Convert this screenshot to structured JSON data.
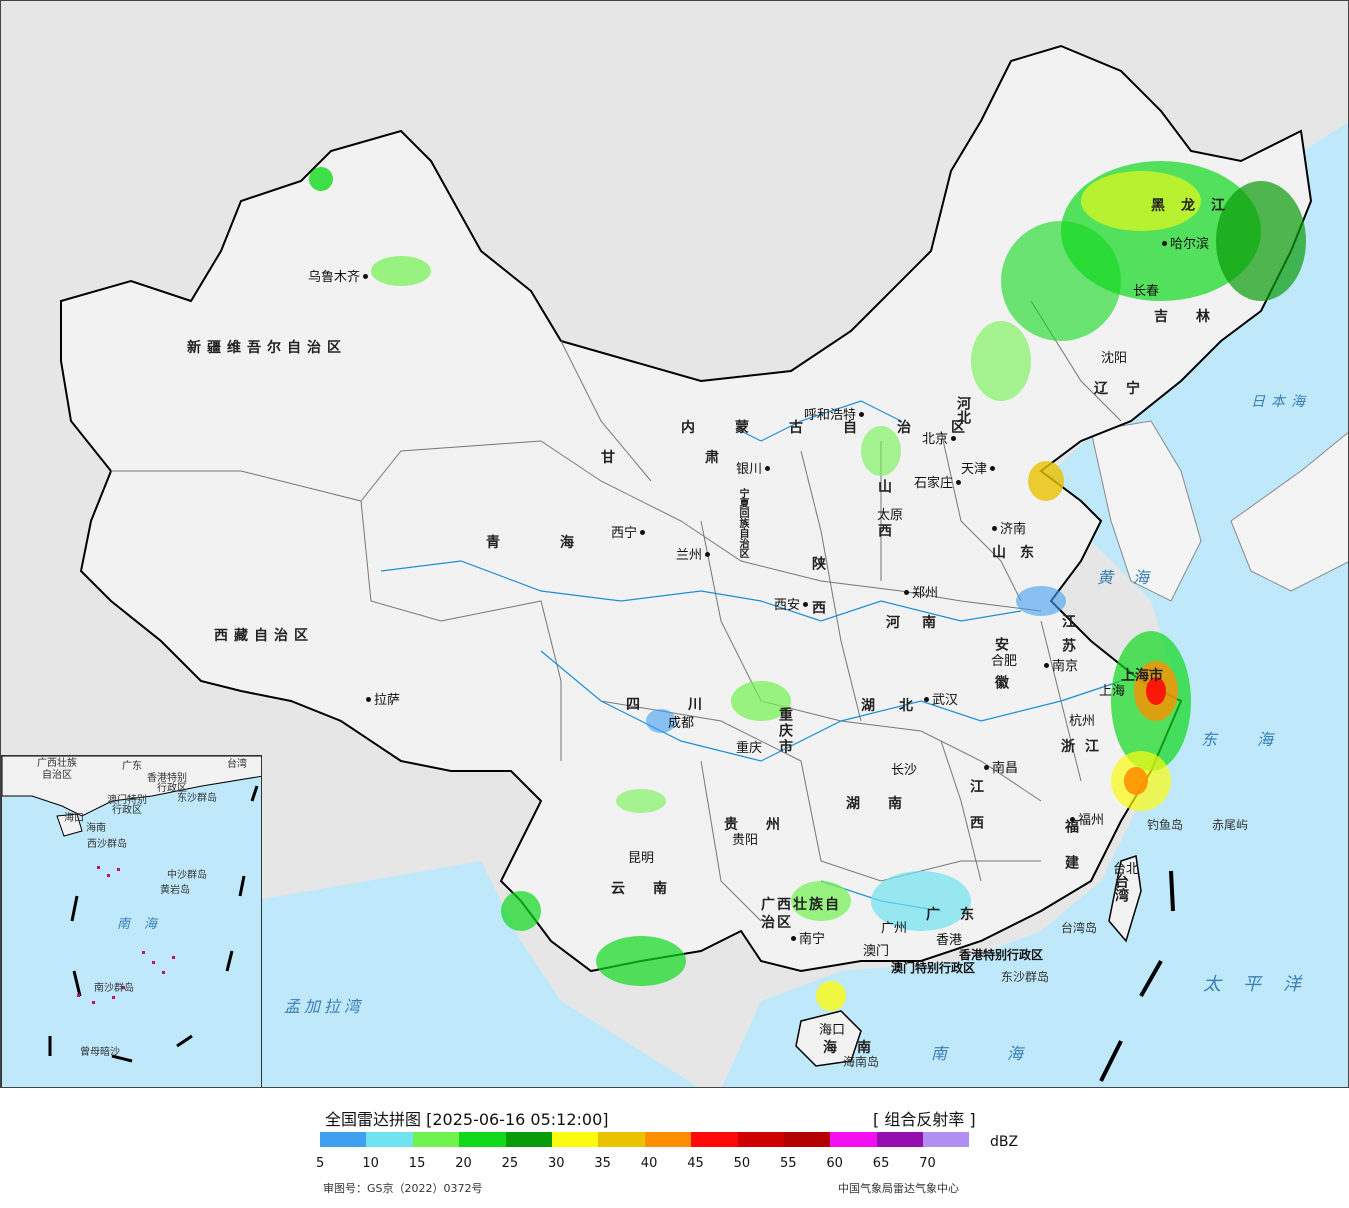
{
  "map": {
    "provinces": [
      {
        "name": "新疆维吾尔自治区"
      },
      {
        "name": "西藏自治区"
      },
      {
        "name": "青海"
      },
      {
        "name": "甘肃"
      },
      {
        "name": "内蒙古自治区"
      },
      {
        "name": "黑龙江"
      },
      {
        "name": "吉林"
      },
      {
        "name": "辽宁"
      },
      {
        "name": "河北"
      },
      {
        "name": "山西"
      },
      {
        "name": "山东"
      },
      {
        "name": "陕西"
      },
      {
        "name": "河南"
      },
      {
        "name": "江苏"
      },
      {
        "name": "安徽"
      },
      {
        "name": "四川"
      },
      {
        "name": "湖北"
      },
      {
        "name": "浙江"
      },
      {
        "name": "江西"
      },
      {
        "name": "湖南"
      },
      {
        "name": "贵州"
      },
      {
        "name": "福建"
      },
      {
        "name": "云南"
      },
      {
        "name": "广西壮族自治区"
      },
      {
        "name": "广东"
      },
      {
        "name": "海南"
      },
      {
        "name": "台湾"
      },
      {
        "name": "重庆市"
      },
      {
        "name": "上海市"
      },
      {
        "name": "宁夏回族自治区"
      }
    ],
    "cities": [
      "乌鲁木齐",
      "拉萨",
      "西宁",
      "兰州",
      "银川",
      "呼和浩特",
      "北京",
      "天津",
      "石家庄",
      "太原",
      "济南",
      "郑州",
      "西安",
      "成都",
      "重庆",
      "武汉",
      "合肥",
      "南京",
      "上海",
      "杭州",
      "长沙",
      "南昌",
      "福州",
      "贵阳",
      "昆明",
      "南宁",
      "广州",
      "澳门",
      "香港",
      "海口",
      "台北",
      "哈尔滨",
      "长春",
      "沈阳"
    ],
    "seas": [
      "日本海",
      "黄海",
      "东海",
      "太平洋",
      "南海",
      "孟加拉湾"
    ],
    "islands": [
      "钓鱼岛",
      "赤尾屿",
      "台湾岛",
      "东沙群岛",
      "海南岛",
      "香港特别行政区",
      "澳门特别行政区"
    ],
    "inset_labels": [
      "广西壮族",
      "自治区",
      "广东",
      "香港特别",
      "行政区",
      "澳门特别",
      "行政区",
      "东沙群岛",
      "台湾",
      "海口",
      "海南",
      "西沙群岛",
      "中沙群岛",
      "黄岩岛",
      "南海",
      "南沙群岛",
      "曾母暗沙"
    ],
    "colors": {
      "land": "#f2f2f2",
      "sea": "#bfe9fb",
      "outside": "#e6e6e6",
      "border": "#000000",
      "river": "#1b8fd6"
    }
  },
  "legend": {
    "title": "全国雷达拼图 [2025-06-16 05:12:00]",
    "product": "[ 组合反射率 ]",
    "unit": "dBZ",
    "ticks": [
      "5",
      "10",
      "15",
      "20",
      "25",
      "30",
      "35",
      "40",
      "45",
      "50",
      "55",
      "60",
      "65",
      "70"
    ],
    "colors": [
      "#3f9ff0",
      "#6fe3ef",
      "#70f24f",
      "#10d91c",
      "#0a9b0a",
      "#fbfb10",
      "#e9c200",
      "#ff8f00",
      "#ff0a0a",
      "#d10000",
      "#b30000",
      "#f40ff1",
      "#950eb0",
      "#b08ff0"
    ],
    "review_no": "审图号：GS京（2022）0372号",
    "source": "中国气象局雷达气象中心"
  }
}
